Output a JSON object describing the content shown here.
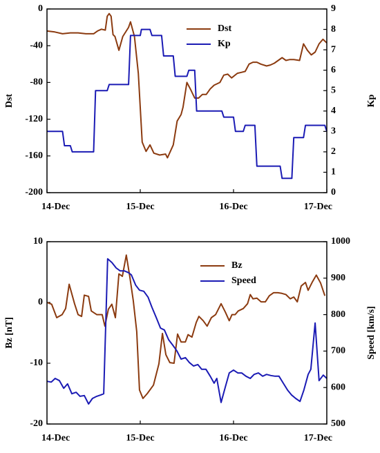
{
  "chart_data": [
    {
      "type": "line",
      "ylabel": "Dst",
      "y2label": "Kp",
      "ylim": [
        -200,
        0
      ],
      "yticks": [
        0,
        -40,
        -80,
        -120,
        -160,
        -200
      ],
      "y2lim": [
        0,
        9
      ],
      "y2ticks": [
        0,
        1,
        2,
        3,
        4,
        5,
        6,
        7,
        8,
        9
      ],
      "xlim": [
        0,
        72
      ],
      "xticks": [
        {
          "value": 0,
          "label": "14-Dec"
        },
        {
          "value": 24,
          "label": "15-Dec"
        },
        {
          "value": 48,
          "label": "16-Dec"
        },
        {
          "value": 72,
          "label": "17-Dec"
        }
      ],
      "series": [
        {
          "name": "Dst",
          "color": "#8b3a0f",
          "x": [
            0,
            2,
            4,
            6,
            8,
            10,
            12,
            13,
            14,
            15,
            15.5,
            16,
            16.5,
            17,
            17.5,
            18.5,
            19.5,
            21,
            21.5,
            22.5,
            23.5,
            24.5,
            25.5,
            26.5,
            27.5,
            29,
            30.5,
            31,
            32.5,
            33.5,
            34.5,
            35,
            36,
            37,
            38,
            39,
            40,
            41,
            42,
            43,
            44.5,
            45.5,
            46.5,
            47.5,
            49,
            50,
            51,
            52,
            53,
            54,
            55,
            56.5,
            57.5,
            58.5,
            59.5,
            60.5,
            61.5,
            62.5,
            63.5,
            65,
            66,
            67,
            68,
            69,
            70,
            71,
            72
          ],
          "values": [
            -24,
            -25,
            -27,
            -26,
            -26,
            -27,
            -27,
            -24,
            -22,
            -23,
            -8,
            -5,
            -8,
            -28,
            -30,
            -45,
            -30,
            -20,
            -14,
            -30,
            -70,
            -145,
            -155,
            -148,
            -157,
            -159,
            -158,
            -162,
            -148,
            -122,
            -115,
            -107,
            -80,
            -88,
            -97,
            -97,
            -93,
            -93,
            -87,
            -83,
            -80,
            -72,
            -71,
            -75,
            -70,
            -69,
            -68,
            -60,
            -58,
            -58,
            -60,
            -62,
            -61,
            -59,
            -56,
            -53,
            -56,
            -55,
            -55,
            -56,
            -38,
            -45,
            -50,
            -47,
            -38,
            -33,
            -37
          ]
        },
        {
          "name": "Kp",
          "color": "#1a1ab4",
          "axis": "y2",
          "x": [
            0,
            4,
            4.5,
            6,
            6.5,
            12,
            12.5,
            15.5,
            16,
            21,
            21.5,
            24,
            24.3,
            26.5,
            27,
            29.5,
            30,
            32.5,
            33,
            36,
            36.5,
            38,
            38.5,
            45,
            45.5,
            48,
            48.5,
            50.5,
            51,
            53.5,
            54,
            60,
            60.5,
            63,
            63.5,
            66,
            66.5,
            71.5,
            72
          ],
          "values": [
            3,
            3,
            2.3,
            2.3,
            2,
            2,
            5,
            5,
            5.3,
            5.3,
            7.7,
            7.7,
            8,
            8,
            7.7,
            7.7,
            6.7,
            6.7,
            5.7,
            5.7,
            6,
            6,
            4,
            4,
            3.7,
            3.7,
            3,
            3,
            3.3,
            3.3,
            1.3,
            1.3,
            0.7,
            0.7,
            2.7,
            2.7,
            3.3,
            3.3,
            3
          ]
        }
      ]
    },
    {
      "type": "line",
      "ylabel": "Bz [nT]",
      "y2label": "Speed [km/s]",
      "ylim": [
        -20,
        10
      ],
      "yticks": [
        10,
        0,
        -10,
        -20
      ],
      "y2lim": [
        500,
        1000
      ],
      "y2ticks": [
        500,
        600,
        700,
        800,
        900,
        1000
      ],
      "xlim": [
        0,
        72
      ],
      "xticks": [
        {
          "value": 0,
          "label": "14-Dec"
        },
        {
          "value": 24,
          "label": "15-Dec"
        },
        {
          "value": 48,
          "label": "16-Dec"
        },
        {
          "value": 72,
          "label": "17-Dec"
        }
      ],
      "series": [
        {
          "name": "Bz",
          "color": "#8b3a0f",
          "x": [
            0,
            1.2,
            2.5,
            3.9,
            4.8,
            5.7,
            7.1,
            8,
            8.9,
            9.6,
            10.7,
            11.4,
            12.8,
            14.2,
            14.9,
            15.8,
            16.7,
            17.6,
            18.5,
            19.4,
            20.4,
            21.3,
            22.2,
            23.1,
            23.8,
            24.7,
            25.8,
            27.4,
            28.8,
            29.7,
            30.6,
            31.6,
            32.7,
            33.6,
            34.5,
            35.6,
            36.3,
            37.3,
            38.4,
            39.1,
            40.2,
            41.2,
            42.3,
            43.4,
            44.8,
            45.9,
            46.9,
            47.6,
            48.4,
            49.2,
            50.5,
            51.6,
            52.3,
            53,
            54,
            55.1,
            56.2,
            57.2,
            58.3,
            59.4,
            60.4,
            61.5,
            62.6,
            63.5,
            64.4,
            65.4,
            66.5,
            67.2,
            68.3,
            69.3,
            70.4,
            71.5
          ],
          "values": [
            0,
            -0.3,
            -2.5,
            -2,
            -1,
            3,
            -0.2,
            -2,
            -2.3,
            1.2,
            1,
            -1.4,
            -2,
            -2,
            -3.9,
            -1.1,
            -0.3,
            -2.5,
            4.7,
            4.3,
            7.8,
            4.3,
            0.3,
            -4.8,
            -14.4,
            -15.8,
            -15,
            -13.6,
            -10.1,
            -5.1,
            -8.6,
            -9.9,
            -10,
            -5.2,
            -6.5,
            -6.5,
            -5.3,
            -5.7,
            -3.3,
            -2.3,
            -3,
            -3.9,
            -2.5,
            -2,
            -0.2,
            -1.6,
            -3,
            -2,
            -2,
            -1.4,
            -1,
            -0.2,
            1.3,
            0.6,
            0.7,
            0.1,
            0.1,
            1.1,
            1.6,
            1.6,
            1.5,
            1.3,
            0.6,
            0.9,
            0.1,
            2.7,
            3.3,
            2,
            3.4,
            4.5,
            3.2,
            1.1
          ]
        },
        {
          "name": "Speed",
          "color": "#1a1ab4",
          "axis": "y2",
          "x": [
            0,
            1.1,
            2.1,
            3.2,
            4.3,
            5.3,
            6.4,
            7.5,
            8.5,
            9.6,
            10.7,
            11.7,
            12.8,
            13.9,
            14.6,
            15.6,
            16.7,
            17.8,
            18.8,
            19.9,
            21,
            21.7,
            22.8,
            23.8,
            24.9,
            26,
            27,
            28.1,
            29.2,
            30.2,
            31.3,
            32.4,
            33.4,
            34.5,
            35.6,
            36.6,
            37.7,
            38.8,
            39.8,
            40.9,
            42,
            43,
            43.7,
            44.8,
            45.9,
            46.9,
            48,
            49.1,
            50.1,
            51.2,
            52.3,
            53.3,
            54.4,
            55.5,
            56.5,
            57.6,
            58.7,
            59.7,
            60.8,
            61.9,
            62.9,
            64,
            65.1,
            66.1,
            67.2,
            67.9,
            69,
            70,
            71.1,
            72
          ],
          "values": [
            617,
            615,
            625,
            619,
            598,
            610,
            583,
            587,
            576,
            578,
            555,
            570,
            576,
            580,
            583,
            953,
            943,
            928,
            920,
            920,
            915,
            909,
            881,
            867,
            864,
            848,
            820,
            792,
            763,
            758,
            731,
            716,
            701,
            678,
            682,
            669,
            659,
            663,
            650,
            650,
            631,
            612,
            625,
            559,
            602,
            640,
            648,
            640,
            640,
            631,
            625,
            636,
            640,
            631,
            636,
            633,
            631,
            631,
            612,
            593,
            580,
            570,
            562,
            593,
            636,
            650,
            777,
            619,
            634,
            625
          ]
        }
      ]
    }
  ]
}
